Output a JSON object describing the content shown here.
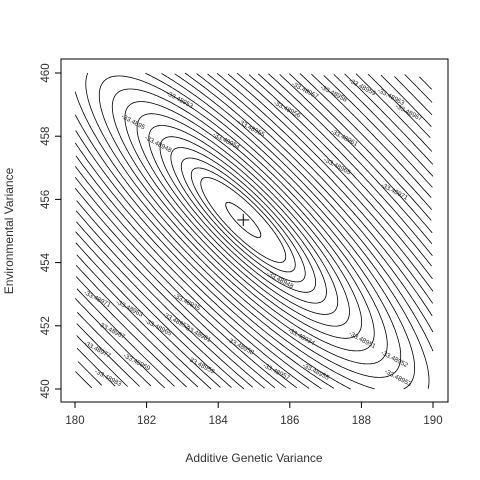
{
  "chart_data": {
    "type": "contour",
    "title": "",
    "xlabel": "Additive Genetic Variance",
    "ylabel": "Environmental Variance",
    "xlim": [
      180,
      190
    ],
    "ylim": [
      450,
      460
    ],
    "xticks": [
      "180",
      "182",
      "184",
      "186",
      "188",
      "190"
    ],
    "yticks": [
      "450",
      "452",
      "454",
      "456",
      "458",
      "460"
    ],
    "grid": false,
    "maximum": {
      "x": 184.7,
      "y": 455.35,
      "marker": "+"
    },
    "contour_labels": [
      {
        "text": "-33.48948",
        "x": 185.7,
        "y": 453.4
      },
      {
        "text": "-33.48948",
        "x": 182.3,
        "y": 457.7
      },
      {
        "text": "-33.4895",
        "x": 181.6,
        "y": 458.4
      },
      {
        "text": "-33.48951",
        "x": 188.0,
        "y": 451.5
      },
      {
        "text": "-33.48952",
        "x": 188.9,
        "y": 450.9
      },
      {
        "text": "-33.48953",
        "x": 189.0,
        "y": 450.3
      },
      {
        "text": "-33.48953",
        "x": 182.9,
        "y": 459.1
      },
      {
        "text": "-33.48954",
        "x": 184.2,
        "y": 457.8
      },
      {
        "text": "-33.48955",
        "x": 184.9,
        "y": 458.2
      },
      {
        "text": "-33.48956",
        "x": 185.9,
        "y": 458.8
      },
      {
        "text": "-33.48957",
        "x": 186.4,
        "y": 459.4
      },
      {
        "text": "-33.48958",
        "x": 187.2,
        "y": 459.3
      },
      {
        "text": "-33.48959",
        "x": 188.0,
        "y": 459.5
      },
      {
        "text": "-33.48961",
        "x": 187.5,
        "y": 457.9
      },
      {
        "text": "-33.48963",
        "x": 188.8,
        "y": 459.2
      },
      {
        "text": "-33.48965",
        "x": 187.3,
        "y": 457.0
      },
      {
        "text": "-33.48967",
        "x": 189.3,
        "y": 458.7
      },
      {
        "text": "-33.48971",
        "x": 188.9,
        "y": 456.2
      },
      {
        "text": "-33.48934",
        "x": 186.3,
        "y": 451.6
      },
      {
        "text": "-33.48935",
        "x": 183.1,
        "y": 452.7
      },
      {
        "text": "-33.48952",
        "x": 182.8,
        "y": 452.1
      },
      {
        "text": "-33.48955",
        "x": 186.7,
        "y": 450.5
      },
      {
        "text": "-33.48957",
        "x": 185.6,
        "y": 450.5
      },
      {
        "text": "-33.48958",
        "x": 184.6,
        "y": 451.3
      },
      {
        "text": "-33.48959",
        "x": 183.5,
        "y": 450.7
      },
      {
        "text": "-33.48961",
        "x": 183.4,
        "y": 451.7
      },
      {
        "text": "-33.48963",
        "x": 181.5,
        "y": 452.5
      },
      {
        "text": "-33.48965",
        "x": 182.3,
        "y": 451.9
      },
      {
        "text": "-33.48967",
        "x": 181.0,
        "y": 451.8
      },
      {
        "text": "-33.48969",
        "x": 181.7,
        "y": 450.8
      },
      {
        "text": "-33.48971",
        "x": 180.6,
        "y": 452.8
      },
      {
        "text": "-33.48977",
        "x": 180.6,
        "y": 451.2
      },
      {
        "text": "-33.48983",
        "x": 180.9,
        "y": 450.3
      }
    ]
  }
}
